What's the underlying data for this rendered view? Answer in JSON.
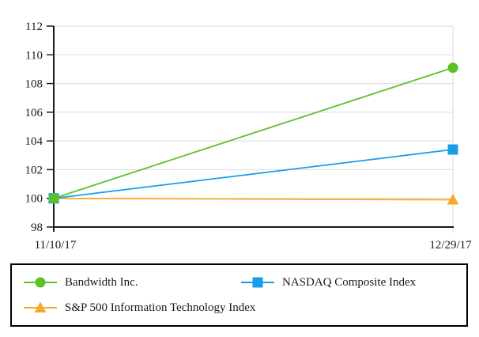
{
  "chart_data": {
    "type": "line",
    "title": "",
    "xlabel": "",
    "ylabel": "",
    "x_labels": [
      "11/10/17",
      "12/29/17"
    ],
    "ylim": [
      98,
      112
    ],
    "yticks": [
      98,
      100,
      102,
      104,
      106,
      108,
      110,
      112
    ],
    "grid": true,
    "grid_color": "#DBDBDB",
    "axis_color": "#1A1A1A",
    "text_color": "#1A1A1A",
    "legend_position": "bottom-box",
    "series": [
      {
        "name": "Bandwidth Inc.",
        "marker": "circle",
        "color": "#5CC126",
        "values": [
          100,
          109.1
        ]
      },
      {
        "name": "NASDAQ Composite Index",
        "marker": "square",
        "color": "#189DE8",
        "values": [
          100,
          103.4
        ]
      },
      {
        "name": "S&P 500 Information Technology Index",
        "marker": "triangle",
        "color": "#F7A92B",
        "values": [
          100,
          99.9
        ]
      }
    ]
  }
}
